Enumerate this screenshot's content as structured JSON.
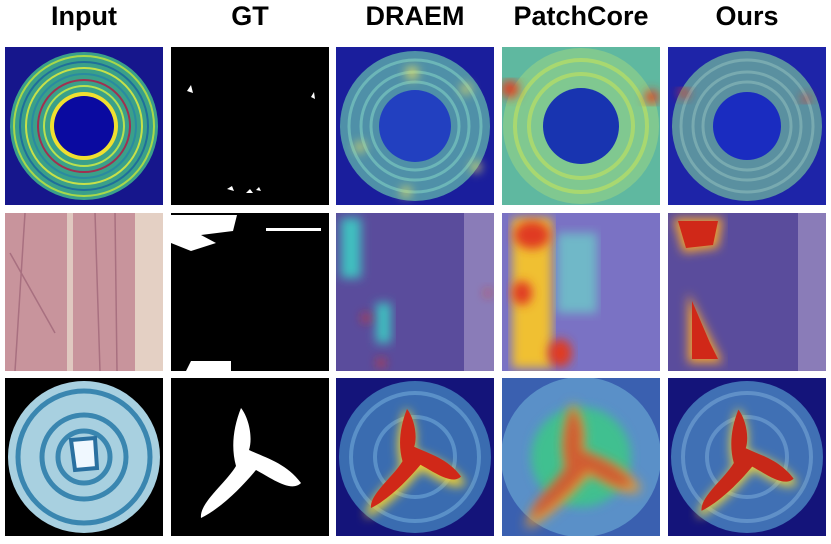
{
  "columns": [
    "Input",
    "GT",
    "DRAEM",
    "PatchCore",
    "Ours"
  ]
}
